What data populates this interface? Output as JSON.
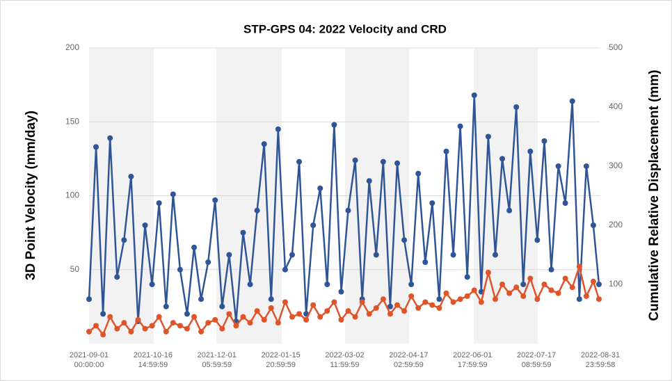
{
  "chart_data": {
    "type": "line",
    "title": "STP-GPS 04: 2022 Velocity and CRD",
    "y_label": "3D Point Velocity (mm/day)",
    "y2_label": "Cumulative Relative Displacement (mm)",
    "x": [
      "2021-09-01",
      "2021-09-06",
      "2021-09-11",
      "2021-09-16",
      "2021-09-21",
      "2021-09-26",
      "2021-10-01",
      "2021-10-06",
      "2021-10-11",
      "2021-10-16",
      "2021-10-21",
      "2021-10-26",
      "2021-10-31",
      "2021-11-05",
      "2021-11-10",
      "2021-11-15",
      "2021-11-20",
      "2021-11-25",
      "2021-11-30",
      "2021-12-05",
      "2021-12-10",
      "2021-12-15",
      "2021-12-20",
      "2021-12-25",
      "2021-12-30",
      "2022-01-04",
      "2022-01-09",
      "2022-01-14",
      "2022-01-19",
      "2022-01-24",
      "2022-01-29",
      "2022-02-03",
      "2022-02-08",
      "2022-02-13",
      "2022-02-18",
      "2022-02-23",
      "2022-02-28",
      "2022-03-05",
      "2022-03-10",
      "2022-03-15",
      "2022-03-20",
      "2022-03-25",
      "2022-03-30",
      "2022-04-04",
      "2022-04-09",
      "2022-04-14",
      "2022-04-19",
      "2022-04-24",
      "2022-04-29",
      "2022-05-04",
      "2022-05-09",
      "2022-05-14",
      "2022-05-19",
      "2022-05-24",
      "2022-05-29",
      "2022-06-03",
      "2022-06-08",
      "2022-06-13",
      "2022-06-18",
      "2022-06-23",
      "2022-06-28",
      "2022-07-03",
      "2022-07-08",
      "2022-07-13",
      "2022-07-18",
      "2022-07-23",
      "2022-07-28",
      "2022-08-02",
      "2022-08-07",
      "2022-08-12",
      "2022-08-17",
      "2022-08-22",
      "2022-08-27",
      "2022-08-31"
    ],
    "series": [
      {
        "color": "#2f5597",
        "axis": "y",
        "values": [
          30,
          133,
          20,
          139,
          45,
          70,
          113,
          15,
          80,
          40,
          95,
          25,
          101,
          50,
          20,
          65,
          30,
          55,
          97,
          25,
          60,
          15,
          75,
          40,
          90,
          135,
          30,
          145,
          50,
          60,
          123,
          20,
          80,
          105,
          40,
          148,
          35,
          90,
          124,
          30,
          110,
          60,
          123,
          25,
          122,
          70,
          40,
          115,
          55,
          95,
          30,
          130,
          60,
          147,
          45,
          168,
          35,
          140,
          60,
          125,
          90,
          160,
          40,
          130,
          70,
          137,
          50,
          120,
          95,
          164,
          30,
          120,
          80,
          40
        ]
      },
      {
        "color": "#e0542a",
        "axis": "y2",
        "values": [
          20,
          30,
          15,
          45,
          25,
          35,
          20,
          40,
          25,
          30,
          45,
          20,
          35,
          30,
          25,
          45,
          20,
          35,
          40,
          25,
          50,
          30,
          45,
          35,
          55,
          40,
          60,
          35,
          70,
          45,
          50,
          40,
          65,
          45,
          55,
          70,
          40,
          55,
          45,
          70,
          50,
          60,
          75,
          50,
          65,
          55,
          80,
          60,
          70,
          65,
          60,
          85,
          70,
          75,
          80,
          90,
          70,
          120,
          75,
          100,
          85,
          95,
          80,
          110,
          75,
          100,
          90,
          85,
          110,
          95,
          130,
          80,
          105,
          75
        ]
      }
    ],
    "xlim": [
      "2021-09-01 00:00:00",
      "2022-08-31 23:59:58"
    ],
    "xticks": [
      "2021-09-01 00:00:00",
      "2021-10-16 14:59:59",
      "2021-12-01 05:59:59",
      "2022-01-15 20:59:59",
      "2022-03-02 11:59:59",
      "2022-04-17 02:59:59",
      "2022-06-01 17:59:59",
      "2022-07-17 08:59:59",
      "2022-08-31 23:59:58"
    ],
    "ylim": [
      0,
      200
    ],
    "yticks": [
      50,
      100,
      150,
      200
    ],
    "y2lim": [
      0,
      500
    ],
    "y2ticks": [
      100,
      200,
      300,
      400,
      500
    ],
    "grid": true
  }
}
